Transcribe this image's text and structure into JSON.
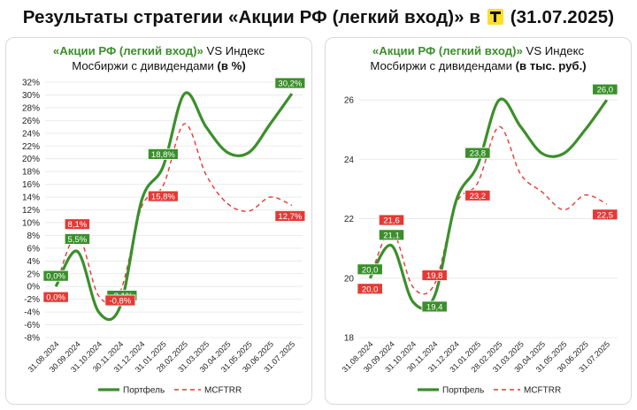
{
  "title": {
    "text_before": "Результаты стратегии «Акции РФ (легкий вход)» в",
    "text_after": "(31.07.2025)",
    "logo": "tbank-t-logo"
  },
  "colors": {
    "portfolio": "#3b8f2b",
    "index": "#e53935",
    "grid": "#e6e6e6"
  },
  "charts": [
    {
      "title_green": "«Акции РФ (легкий вход)»",
      "title_rest": " VS Индекс",
      "title_line2": "Мосбиржи с дивидендами ",
      "title_unit": "(в %)"
    },
    {
      "title_green": "«Акции РФ (легкий вход)»",
      "title_rest": " VS Индекс",
      "title_line2": "Мосбиржи с дивидендами ",
      "title_unit": "(в тыс. руб.)"
    }
  ],
  "chart_data": [
    {
      "type": "line",
      "categories": [
        "31.08.2024",
        "30.09.2024",
        "31.10.2024",
        "30.11.2024",
        "31.12.2024",
        "31.01.2025",
        "28.02.2025",
        "31.03.2025",
        "30.04.2025",
        "31.05.2025",
        "30.06.2025",
        "31.07.2025"
      ],
      "yticks": [
        "32%",
        "30%",
        "28%",
        "26%",
        "24%",
        "22%",
        "20%",
        "18%",
        "16%",
        "14%",
        "12%",
        "10%",
        "8%",
        "6%",
        "4%",
        "2%",
        "0%",
        "-2%",
        "-4%",
        "-6%",
        "-8%"
      ],
      "ylim": [
        -8,
        32
      ],
      "grid": true,
      "legend_position": "bottom",
      "series": [
        {
          "name": "Портфель",
          "style": "solid",
          "values": [
            0.0,
            5.5,
            -4.0,
            -3.1,
            13.5,
            18.8,
            30.2,
            25.0,
            21.0,
            21.0,
            25.5,
            30.2
          ],
          "labels": [
            {
              "index": 0,
              "text": "0,0%"
            },
            {
              "index": 1,
              "text": "5,5%"
            },
            {
              "index": 3,
              "text": "-3,1%"
            },
            {
              "index": 5,
              "text": "18,8%"
            },
            {
              "index": 11,
              "text": "30,2%"
            }
          ]
        },
        {
          "name": "MCFTRR",
          "style": "dashed",
          "values": [
            0.0,
            8.1,
            -1.5,
            -0.8,
            12.5,
            15.8,
            25.5,
            17.5,
            13.0,
            11.8,
            14.0,
            12.7
          ],
          "labels": [
            {
              "index": 0,
              "text": "0,0%"
            },
            {
              "index": 1,
              "text": "8,1%"
            },
            {
              "index": 3,
              "text": "-0,8%"
            },
            {
              "index": 5,
              "text": "15,8%"
            },
            {
              "index": 11,
              "text": "12,7%"
            }
          ]
        }
      ]
    },
    {
      "type": "line",
      "categories": [
        "31.08.2024",
        "30.09.2024",
        "31.10.2024",
        "30.11.2024",
        "31.12.2024",
        "31.01.2025",
        "28.02.2025",
        "31.03.2025",
        "30.04.2025",
        "31.05.2025",
        "30.06.2025",
        "31.07.2025"
      ],
      "yticks": [
        "26",
        "24",
        "22",
        "20",
        "18"
      ],
      "ylim": [
        18,
        26.6
      ],
      "grid": true,
      "legend_position": "bottom",
      "series": [
        {
          "name": "Портфель",
          "style": "solid",
          "values": [
            20.0,
            21.1,
            19.2,
            19.4,
            22.6,
            23.8,
            26.0,
            25.1,
            24.2,
            24.2,
            25.0,
            26.0
          ],
          "labels": [
            {
              "index": 0,
              "text": "20,0"
            },
            {
              "index": 1,
              "text": "21,1"
            },
            {
              "index": 3,
              "text": "19,4"
            },
            {
              "index": 5,
              "text": "23,8"
            },
            {
              "index": 11,
              "text": "26,0"
            }
          ]
        },
        {
          "name": "MCFTRR",
          "style": "dashed",
          "values": [
            20.0,
            21.6,
            19.7,
            19.8,
            22.5,
            23.2,
            25.1,
            23.5,
            22.9,
            22.3,
            22.8,
            22.5
          ],
          "labels": [
            {
              "index": 0,
              "text": "20,0"
            },
            {
              "index": 1,
              "text": "21,6"
            },
            {
              "index": 3,
              "text": "19,8"
            },
            {
              "index": 5,
              "text": "23,2"
            },
            {
              "index": 11,
              "text": "22,5"
            }
          ]
        }
      ]
    }
  ]
}
